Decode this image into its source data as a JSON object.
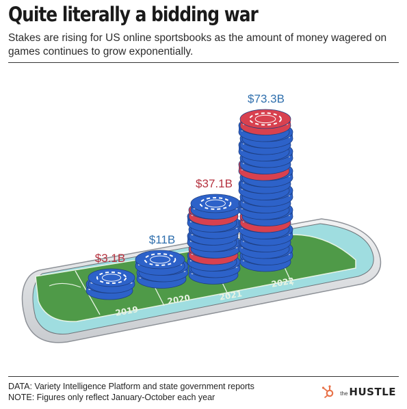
{
  "header": {
    "title": "Quite literally a bidding war",
    "subtitle": "Stakes are rising for US online sportsbooks as the amount of money wagered on games continues to grow exponentially."
  },
  "chart_data": {
    "type": "bar",
    "categories": [
      "2019",
      "2020",
      "2021",
      "2022"
    ],
    "values": [
      3.1,
      11,
      37.1,
      73.3
    ],
    "data_labels": [
      "$3.1B",
      "$11B",
      "$37.1B",
      "$73.3B"
    ],
    "label_colors": [
      "#b5323f",
      "#2f6fad",
      "#b5323f",
      "#2f6fad"
    ],
    "title": "Quite literally a bidding war",
    "ylim": [
      0,
      80
    ]
  },
  "colors": {
    "chip_blue": "#2d62c9",
    "chip_red": "#d8414f",
    "field_green": "#4f9a48",
    "phone_body": "#e4e6e8"
  },
  "footer": {
    "line1": "DATA: Variety Intelligence Platform and state government reports",
    "line2": "NOTE: Figures only reflect January-October each year"
  },
  "brand": {
    "prefix": "the",
    "name": "HUSTLE",
    "icon": "hubspot-sprocket-icon"
  }
}
